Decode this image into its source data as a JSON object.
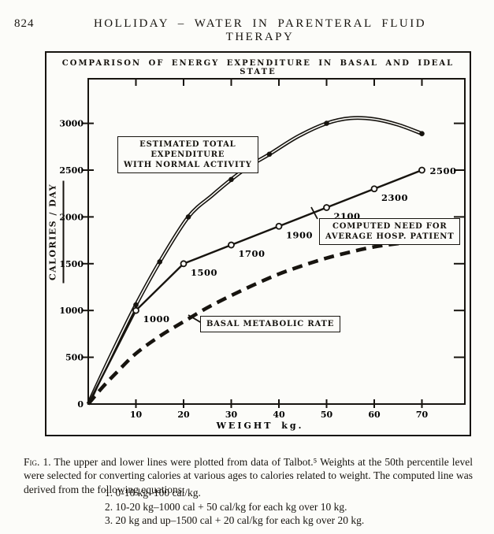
{
  "page": {
    "number": "824",
    "running_head": "HOLLIDAY – WATER IN PARENTERAL FLUID THERAPY"
  },
  "figure": {
    "title": "COMPARISON OF ENERGY EXPENDITURE IN BASAL AND IDEAL STATE",
    "annotations": {
      "estimated": "ESTIMATED TOTAL\nEXPENDITURE\nWITH NORMAL ACTIVITY",
      "computed": "COMPUTED NEED FOR\nAVERAGE HOSP. PATIENT",
      "basal": "BASAL METABOLIC RATE"
    }
  },
  "caption": {
    "fig_label": "Fig. 1.",
    "text": "The upper and lower lines were plotted from data of Talbot.⁵ Weights at the 50th percentile level were selected for converting calories at various ages to calories related to weight. The computed line was derived from the following equations:",
    "equations": [
      "1. 0-10 kg–100 cal/kg.",
      "2. 10-20 kg–1000 cal + 50 cal/kg for each kg over 10 kg.",
      "3. 20 kg and up–1500 cal + 20 cal/kg for each kg over 20 kg."
    ]
  },
  "colors": {
    "ink": "#17140f",
    "paper": "#fcfcf9"
  },
  "chart_data": {
    "type": "line",
    "title": "COMPARISON OF ENERGY EXPENDITURE IN BASAL AND IDEAL STATE",
    "xlabel": "WEIGHT kg.",
    "ylabel": "CALORIES / DAY",
    "xlim": [
      0,
      79
    ],
    "ylim": [
      0,
      3475
    ],
    "x_ticks": [
      10,
      20,
      30,
      40,
      50,
      60,
      70
    ],
    "y_ticks": [
      0,
      500,
      1000,
      1500,
      2000,
      2500,
      3000
    ],
    "grid": false,
    "legend_position": "inline-annotation-boxes",
    "series": [
      {
        "id": "estimated_total",
        "name": "ESTIMATED TOTAL EXPENDITURE WITH NORMAL ACTIVITY",
        "style": "double-line",
        "interpolation": "smooth",
        "marker": "filled-circle",
        "points": [
          [
            0,
            0
          ],
          [
            3,
            330
          ],
          [
            6,
            650
          ],
          [
            10,
            1060
          ],
          [
            15,
            1520
          ],
          [
            21,
            2000
          ],
          [
            26,
            2230
          ],
          [
            30,
            2400
          ],
          [
            34,
            2550
          ],
          [
            38,
            2670
          ],
          [
            44,
            2860
          ],
          [
            50,
            3000
          ],
          [
            55,
            3055
          ],
          [
            60,
            3045
          ],
          [
            65,
            2985
          ],
          [
            70,
            2890
          ]
        ],
        "marker_points": [
          [
            10,
            1060
          ],
          [
            15,
            1520
          ],
          [
            21,
            2000
          ],
          [
            30,
            2400
          ],
          [
            38,
            2670
          ],
          [
            50,
            3000
          ],
          [
            70,
            2890
          ]
        ]
      },
      {
        "id": "computed_need",
        "name": "COMPUTED NEED FOR AVERAGE HOSP. PATIENT",
        "style": "solid",
        "interpolation": "linear",
        "marker": "open-circle",
        "points": [
          [
            0,
            0
          ],
          [
            10,
            1000
          ],
          [
            20,
            1500
          ],
          [
            30,
            1700
          ],
          [
            40,
            1900
          ],
          [
            50,
            2100
          ],
          [
            60,
            2300
          ],
          [
            70,
            2500
          ]
        ],
        "labeled_points": [
          {
            "x": 10,
            "y": 1000,
            "label": "1000"
          },
          {
            "x": 20,
            "y": 1500,
            "label": "1500"
          },
          {
            "x": 30,
            "y": 1700,
            "label": "1700"
          },
          {
            "x": 40,
            "y": 1900,
            "label": "1900"
          },
          {
            "x": 50,
            "y": 2100,
            "label": "2100"
          },
          {
            "x": 60,
            "y": 2300,
            "label": "2300"
          },
          {
            "x": 70,
            "y": 2500,
            "label": "2500"
          }
        ]
      },
      {
        "id": "basal_rate",
        "name": "BASAL METABOLIC RATE",
        "style": "dashed",
        "interpolation": "smooth",
        "marker": "none",
        "points": [
          [
            0,
            0
          ],
          [
            3,
            180
          ],
          [
            6,
            340
          ],
          [
            10,
            540
          ],
          [
            15,
            725
          ],
          [
            20,
            880
          ],
          [
            25,
            1030
          ],
          [
            30,
            1160
          ],
          [
            35,
            1280
          ],
          [
            40,
            1390
          ],
          [
            45,
            1480
          ],
          [
            50,
            1560
          ],
          [
            55,
            1625
          ],
          [
            60,
            1680
          ],
          [
            65,
            1715
          ],
          [
            70,
            1735
          ]
        ]
      }
    ]
  }
}
